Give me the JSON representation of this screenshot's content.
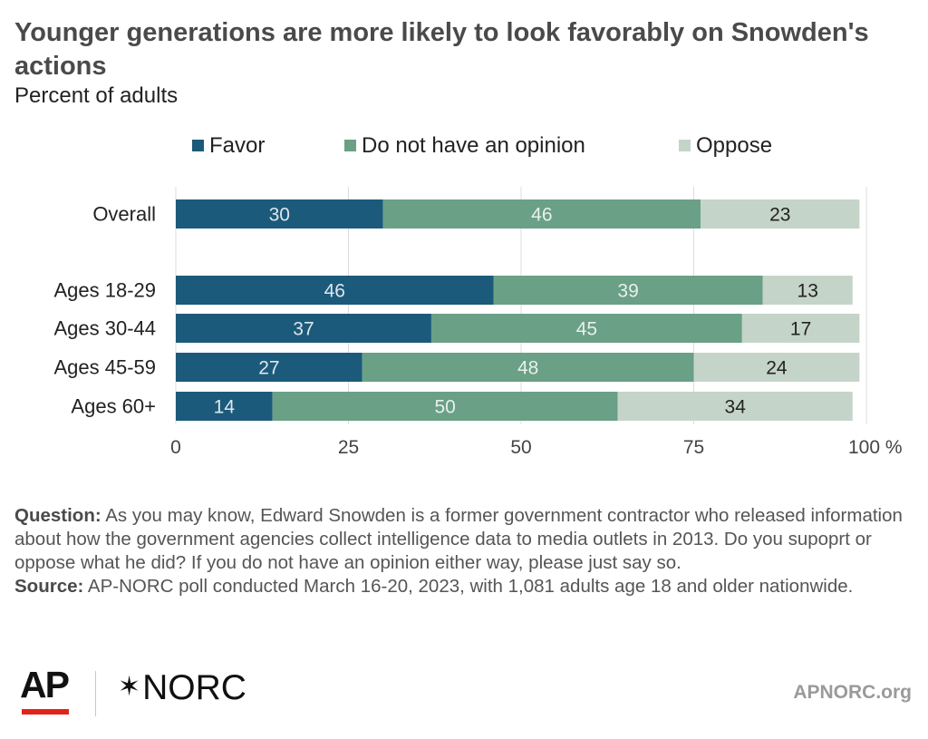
{
  "title": "Younger generations are more likely to look favorably on Snowden's actions",
  "subtitle": "Percent of adults",
  "legend": [
    {
      "label": "Favor",
      "color": "#1b5a7a"
    },
    {
      "label": "Do not have an opinion",
      "color": "#6aa085"
    },
    {
      "label": "Oppose",
      "color": "#c5d4c9"
    }
  ],
  "chart_data": {
    "type": "bar",
    "orientation": "horizontal",
    "stacked": true,
    "categories": [
      "Overall",
      "Ages 18-29",
      "Ages 30-44",
      "Ages 45-59",
      "Ages 60+"
    ],
    "series": [
      {
        "name": "Favor",
        "values": [
          30,
          46,
          37,
          27,
          14
        ],
        "color": "#1b5a7a",
        "label_color": "#dde6ec"
      },
      {
        "name": "Do not have an opinion",
        "values": [
          46,
          39,
          45,
          48,
          50
        ],
        "color": "#6aa085",
        "label_color": "#e8f0ea"
      },
      {
        "name": "Oppose",
        "values": [
          23,
          13,
          17,
          24,
          34
        ],
        "color": "#c5d4c9",
        "label_color": "#222222"
      }
    ],
    "xlim": [
      0,
      100
    ],
    "xticks": [
      "0",
      "25",
      "50",
      "75",
      "100 %"
    ],
    "xtick_values": [
      0,
      25,
      50,
      75,
      100
    ],
    "grid": true,
    "legend_position": "top"
  },
  "notes": {
    "question_label": "Question:",
    "question_text": "As you may know, Edward Snowden is a former government contractor who released information about how the government agencies collect intelligence data to media outlets in 2013. Do you supoprt or oppose what he did? If you do not have an opinion either way, please just say so.",
    "source_label": "Source:",
    "source_text": "AP-NORC poll conducted March 16-20, 2023, with 1,081 adults age 18 and older nationwide."
  },
  "footer": {
    "ap_logo": "AP",
    "norc_star": "✶",
    "norc_logo": "NORC",
    "site": "APNORC.org"
  }
}
